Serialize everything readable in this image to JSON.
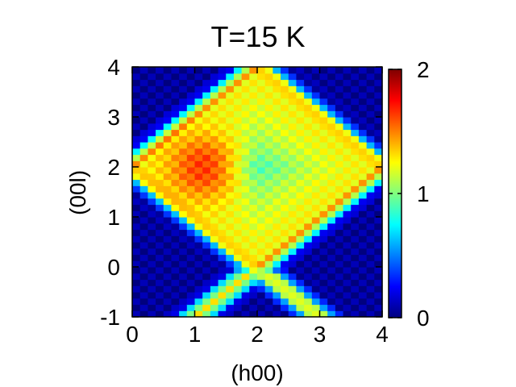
{
  "chart_data": {
    "type": "heatmap",
    "title": "T=15 K",
    "xlabel": "(h00)",
    "ylabel": "(00l)",
    "xlim": [
      0,
      4
    ],
    "ylim": [
      -1,
      4
    ],
    "x_ticks": [
      "0",
      "1",
      "2",
      "3",
      "4"
    ],
    "y_ticks": [
      "-1",
      "0",
      "1",
      "2",
      "3",
      "4"
    ],
    "colorbar": {
      "range": [
        0,
        2
      ],
      "ticks": [
        "0",
        "1",
        "2"
      ],
      "colormap": [
        "#00007f",
        "#0000ff",
        "#007fff",
        "#00ffff",
        "#7fff7f",
        "#ffff00",
        "#ff7f00",
        "#ff0000",
        "#7f0000"
      ]
    },
    "grid": false,
    "grid_step": 0.125,
    "intensity_model": {
      "description_of_features": "diamond of enhanced intensity with vertices at (0,2), (2,4), (4,2), (2,0) continuing to (2,-1); maximum near (1.2,2.0)",
      "diamond_center": [
        2,
        2
      ],
      "diamond_half_width": 2,
      "ridge_peak": 1.35,
      "interior_level": 1.25,
      "hotspot_center": [
        1.2,
        2.0
      ],
      "hotspot_peak": 0.5,
      "lower_cone_apex": [
        2,
        0
      ],
      "background": 0.05
    }
  }
}
